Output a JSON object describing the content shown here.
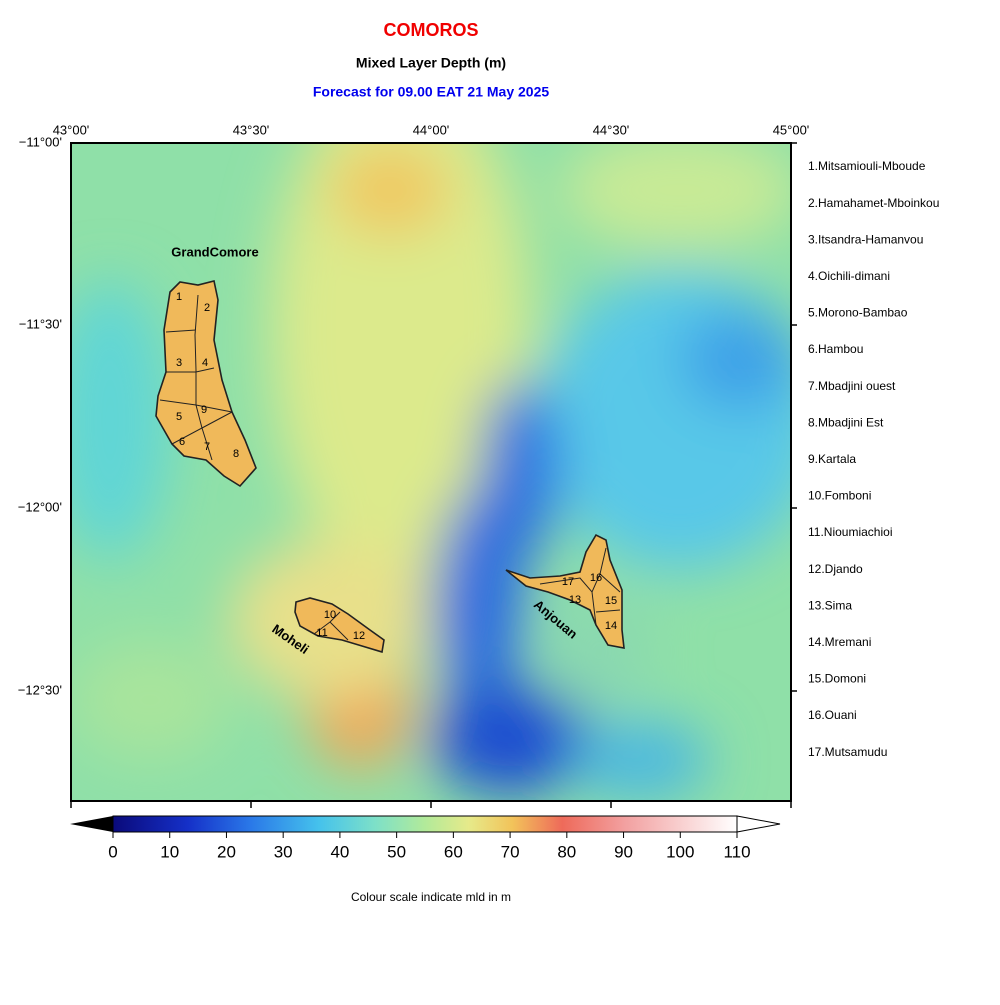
{
  "title": "COMOROS",
  "subtitle": "Mixed Layer Depth (m)",
  "forecast": "Forecast for  09.00 EAT 21 May 2025",
  "x_axis_labels": [
    "43°00'",
    "43°30'",
    "44°00'",
    "44°30'",
    "45°00'"
  ],
  "y_axis_labels": [
    "−11°00'",
    "−11°30'",
    "−12°00'",
    "−12°30'"
  ],
  "islands": [
    "GrandComore",
    "Moheli",
    "Anjouan"
  ],
  "region_numbers": [
    "1",
    "2",
    "3",
    "4",
    "5",
    "6",
    "7",
    "8",
    "9",
    "10",
    "11",
    "12",
    "13",
    "14",
    "15",
    "16",
    "17"
  ],
  "legend": [
    "1.Mitsamiouli-Mboude",
    "2.Hamahamet-Mboinkou",
    "3.Itsandra-Hamanvou",
    "4.Oichili-dimani",
    "5.Morono-Bambao",
    "6.Hambou",
    "7.Mbadjini ouest",
    "8.Mbadjini Est",
    "9.Kartala",
    "10.Fomboni",
    "11.Nioumiachioi",
    "12.Djando",
    "13.Sima",
    "14.Mremani",
    "15.Domoni",
    "16.Ouani",
    "17.Mutsamudu"
  ],
  "colorbar": {
    "ticks": [
      0,
      10,
      20,
      30,
      40,
      50,
      60,
      70,
      80,
      90,
      100,
      110
    ]
  },
  "caption": "Colour scale indicate mld in m"
}
